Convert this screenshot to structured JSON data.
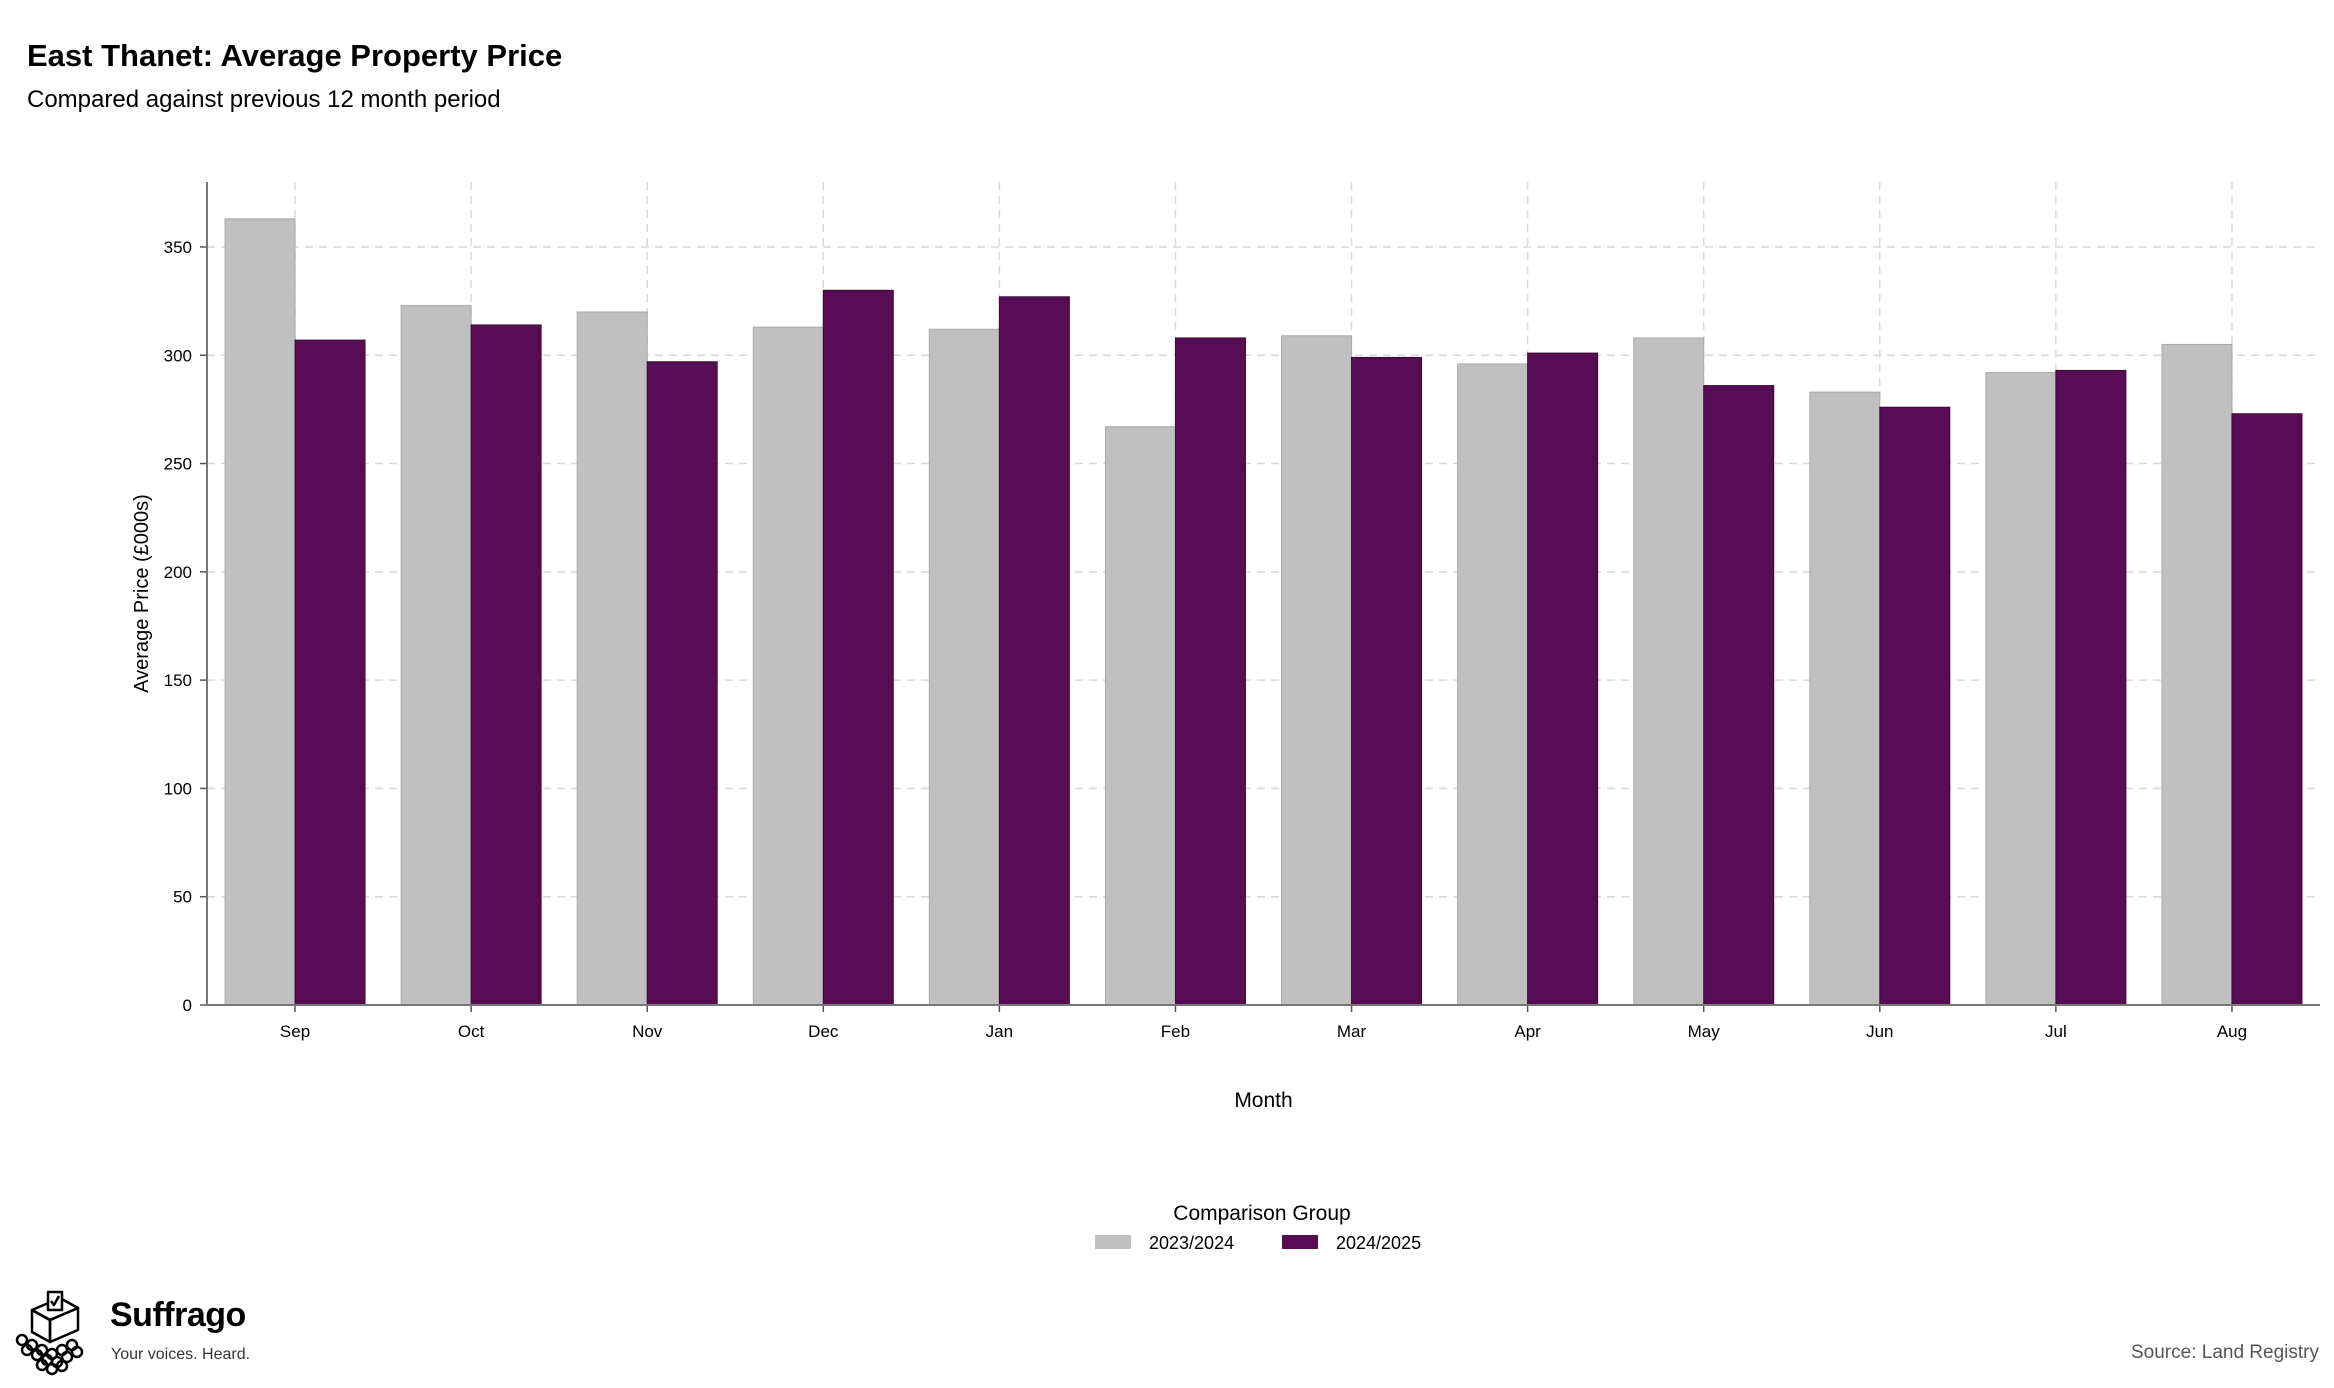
{
  "header": {
    "title": "East Thanet: Average Property Price",
    "subtitle": "Compared against previous 12 month period"
  },
  "chart_data": {
    "type": "bar",
    "xlabel": "Month",
    "ylabel": "Average Price (£000s)",
    "ylim": [
      0,
      380
    ],
    "yticks": [
      0,
      50,
      100,
      150,
      200,
      250,
      300,
      350
    ],
    "grid": true,
    "legend_title": "Comparison Group",
    "legend_position": "bottom",
    "categories": [
      "Sep",
      "Oct",
      "Nov",
      "Dec",
      "Jan",
      "Feb",
      "Mar",
      "Apr",
      "May",
      "Jun",
      "Jul",
      "Aug"
    ],
    "series": [
      {
        "name": "2023/2024",
        "color": "#c0c0c0",
        "values": [
          363,
          323,
          320,
          313,
          312,
          267,
          309,
          296,
          308,
          283,
          292,
          305
        ]
      },
      {
        "name": "2024/2025",
        "color": "#560d54",
        "values": [
          307,
          314,
          297,
          330,
          327,
          308,
          299,
          301,
          286,
          276,
          293,
          273
        ]
      }
    ]
  },
  "footer": {
    "brand_name": "Suffrago",
    "brand_tagline": "Your voices. Heard.",
    "source": "Source: Land Registry"
  }
}
